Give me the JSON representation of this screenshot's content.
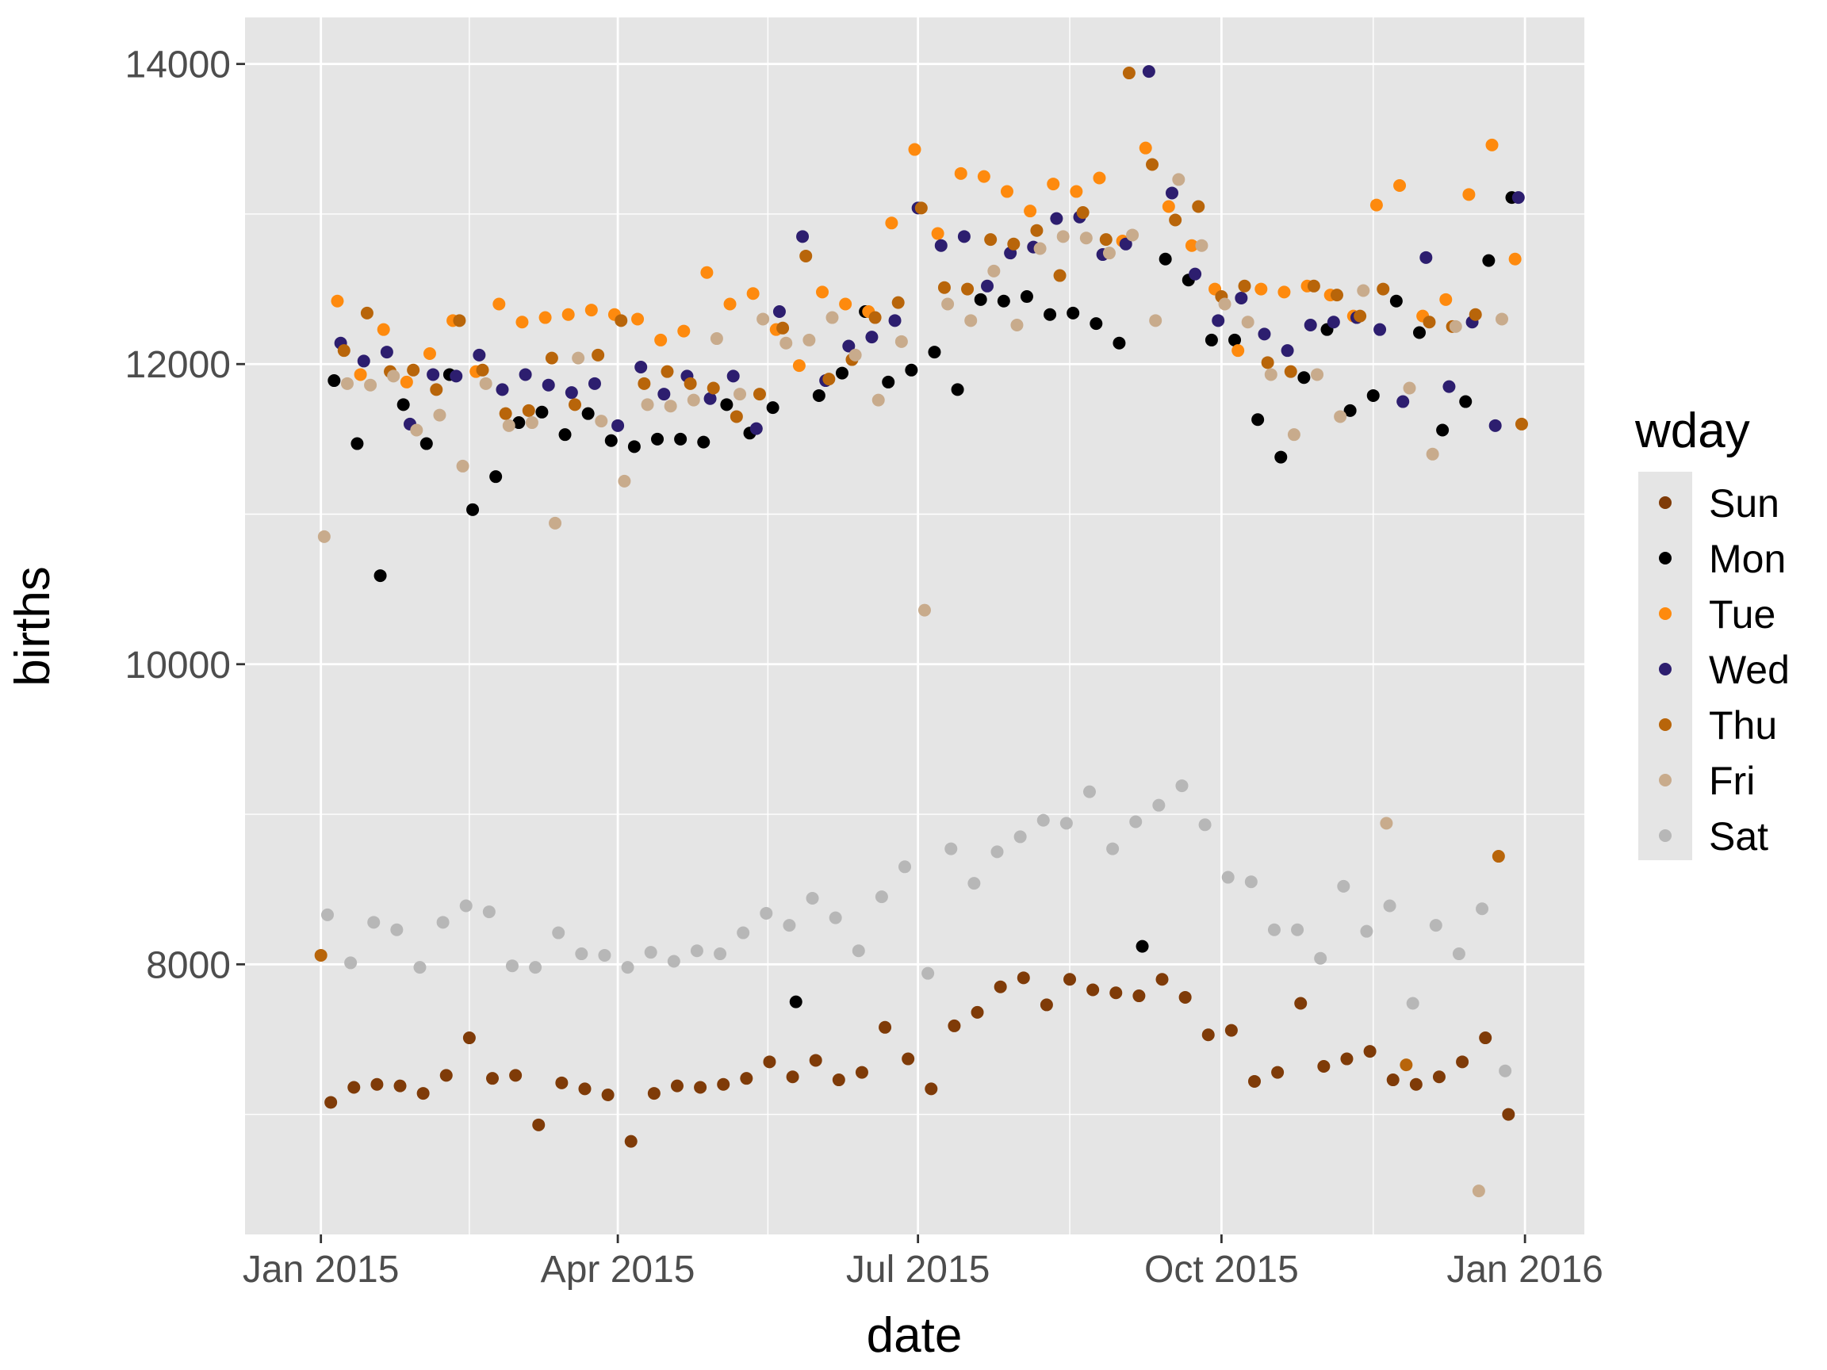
{
  "chart_data": {
    "type": "scatter",
    "xlabel": "date",
    "ylabel": "births",
    "x_ticks": [
      "2015-01-01",
      "2015-04-01",
      "2015-07-01",
      "2015-10-01",
      "2016-01-01"
    ],
    "x_tick_labels": [
      "Jan 2015",
      "Apr 2015",
      "Jul 2015",
      "Oct 2015",
      "Jan 2016"
    ],
    "y_ticks": [
      8000,
      10000,
      12000,
      14000
    ],
    "y_tick_labels": [
      "8000",
      "10000",
      "12000",
      "14000"
    ],
    "xlim": [
      "2014-12-09",
      "2016-01-19"
    ],
    "ylim": [
      6200,
      14310
    ],
    "grid": true,
    "legend": {
      "title": "wday",
      "position": "right",
      "items": [
        {
          "label": "Sun",
          "color": "#7f3b08"
        },
        {
          "label": "Mon",
          "color": "#000000"
        },
        {
          "label": "Tue",
          "color": "#fe8a0e"
        },
        {
          "label": "Wed",
          "color": "#2d1e6f"
        },
        {
          "label": "Thu",
          "color": "#b8650a"
        },
        {
          "label": "Fri",
          "color": "#c8ab8c"
        },
        {
          "label": "Sat",
          "color": "#b7b7b7"
        }
      ]
    },
    "series": [
      {
        "name": "Sun",
        "color": "#7f3b08",
        "x": [
          "2015-01-04",
          "2015-01-11",
          "2015-01-18",
          "2015-01-25",
          "2015-02-01",
          "2015-02-08",
          "2015-02-15",
          "2015-02-22",
          "2015-03-01",
          "2015-03-08",
          "2015-03-15",
          "2015-03-22",
          "2015-03-29",
          "2015-04-05",
          "2015-04-12",
          "2015-04-19",
          "2015-04-26",
          "2015-05-03",
          "2015-05-10",
          "2015-05-17",
          "2015-05-24",
          "2015-05-31",
          "2015-06-07",
          "2015-06-14",
          "2015-06-21",
          "2015-06-28",
          "2015-07-05",
          "2015-07-12",
          "2015-07-19",
          "2015-07-26",
          "2015-08-02",
          "2015-08-09",
          "2015-08-16",
          "2015-08-23",
          "2015-08-30",
          "2015-09-06",
          "2015-09-13",
          "2015-09-20",
          "2015-09-27",
          "2015-10-04",
          "2015-10-11",
          "2015-10-18",
          "2015-10-25",
          "2015-11-01",
          "2015-11-08",
          "2015-11-15",
          "2015-11-22",
          "2015-11-29",
          "2015-12-06",
          "2015-12-13",
          "2015-12-20",
          "2015-12-27"
        ],
        "y": [
          7080,
          7180,
          7200,
          7190,
          7140,
          7260,
          7510,
          7240,
          7260,
          6930,
          7210,
          7170,
          7130,
          6820,
          7140,
          7190,
          7180,
          7200,
          7240,
          7350,
          7250,
          7360,
          7230,
          7280,
          7580,
          7370,
          7170,
          7590,
          7680,
          7850,
          7910,
          7730,
          7900,
          7830,
          7810,
          7790,
          7900,
          7780,
          7530,
          7560,
          7220,
          7280,
          7740,
          7320,
          7370,
          7420,
          7230,
          7200,
          7250,
          7350,
          7510,
          7000
        ]
      },
      {
        "name": "Mon",
        "color": "#000000",
        "x": [
          "2015-01-05",
          "2015-01-12",
          "2015-01-19",
          "2015-01-26",
          "2015-02-02",
          "2015-02-09",
          "2015-02-16",
          "2015-02-23",
          "2015-03-02",
          "2015-03-09",
          "2015-03-16",
          "2015-03-23",
          "2015-03-30",
          "2015-04-06",
          "2015-04-13",
          "2015-04-20",
          "2015-04-27",
          "2015-05-04",
          "2015-05-11",
          "2015-05-18",
          "2015-05-25",
          "2015-06-01",
          "2015-06-08",
          "2015-06-15",
          "2015-06-22",
          "2015-06-29",
          "2015-07-06",
          "2015-07-13",
          "2015-07-20",
          "2015-07-27",
          "2015-08-03",
          "2015-08-10",
          "2015-08-17",
          "2015-08-24",
          "2015-08-31",
          "2015-09-07",
          "2015-09-14",
          "2015-09-21",
          "2015-09-28",
          "2015-10-05",
          "2015-10-12",
          "2015-10-19",
          "2015-10-26",
          "2015-11-02",
          "2015-11-09",
          "2015-11-16",
          "2015-11-23",
          "2015-11-30",
          "2015-12-07",
          "2015-12-14",
          "2015-12-21",
          "2015-12-28"
        ],
        "y": [
          11890,
          11470,
          10590,
          11730,
          11470,
          11930,
          11030,
          11250,
          11610,
          11680,
          11530,
          11670,
          11490,
          11450,
          11500,
          11500,
          11480,
          11730,
          11540,
          11710,
          7750,
          11790,
          11940,
          12350,
          11880,
          11960,
          12080,
          11830,
          12430,
          12420,
          12450,
          12330,
          12340,
          12270,
          12140,
          8120,
          12700,
          12560,
          12160,
          12160,
          11630,
          11380,
          11910,
          12230,
          11690,
          11790,
          12420,
          12210,
          11560,
          11750,
          12690,
          13110
        ]
      },
      {
        "name": "Tue",
        "color": "#fe8a0e",
        "x": [
          "2015-01-06",
          "2015-01-13",
          "2015-01-20",
          "2015-01-27",
          "2015-02-03",
          "2015-02-10",
          "2015-02-17",
          "2015-02-24",
          "2015-03-03",
          "2015-03-10",
          "2015-03-17",
          "2015-03-24",
          "2015-03-31",
          "2015-04-07",
          "2015-04-14",
          "2015-04-21",
          "2015-04-28",
          "2015-05-05",
          "2015-05-12",
          "2015-05-19",
          "2015-05-26",
          "2015-06-02",
          "2015-06-09",
          "2015-06-16",
          "2015-06-23",
          "2015-06-30",
          "2015-07-07",
          "2015-07-14",
          "2015-07-21",
          "2015-07-28",
          "2015-08-04",
          "2015-08-11",
          "2015-08-18",
          "2015-08-25",
          "2015-09-01",
          "2015-09-08",
          "2015-09-15",
          "2015-09-22",
          "2015-09-29",
          "2015-10-06",
          "2015-10-13",
          "2015-10-20",
          "2015-10-27",
          "2015-11-03",
          "2015-11-10",
          "2015-11-17",
          "2015-11-24",
          "2015-12-01",
          "2015-12-08",
          "2015-12-15",
          "2015-12-22",
          "2015-12-29"
        ],
        "y": [
          12420,
          11930,
          12230,
          11880,
          12070,
          12290,
          11950,
          12400,
          12280,
          12310,
          12330,
          12360,
          12330,
          12300,
          12160,
          12220,
          12610,
          12400,
          12470,
          12230,
          11990,
          12480,
          12400,
          12350,
          12940,
          13430,
          12870,
          13270,
          13250,
          13150,
          13020,
          13200,
          13150,
          13240,
          12820,
          13440,
          13050,
          12790,
          12500,
          12090,
          12500,
          12480,
          12520,
          12460,
          12320,
          13060,
          13190,
          12320,
          12430,
          13130,
          13460,
          12700
        ]
      },
      {
        "name": "Wed",
        "color": "#2d1e6f",
        "x": [
          "2015-01-07",
          "2015-01-14",
          "2015-01-21",
          "2015-01-28",
          "2015-02-04",
          "2015-02-11",
          "2015-02-18",
          "2015-02-25",
          "2015-03-04",
          "2015-03-11",
          "2015-03-18",
          "2015-03-25",
          "2015-04-01",
          "2015-04-08",
          "2015-04-15",
          "2015-04-22",
          "2015-04-29",
          "2015-05-06",
          "2015-05-13",
          "2015-05-20",
          "2015-05-27",
          "2015-06-03",
          "2015-06-10",
          "2015-06-17",
          "2015-06-24",
          "2015-07-01",
          "2015-07-08",
          "2015-07-15",
          "2015-07-22",
          "2015-07-29",
          "2015-08-05",
          "2015-08-12",
          "2015-08-19",
          "2015-08-26",
          "2015-09-02",
          "2015-09-09",
          "2015-09-16",
          "2015-09-23",
          "2015-09-30",
          "2015-10-07",
          "2015-10-14",
          "2015-10-21",
          "2015-10-28",
          "2015-11-04",
          "2015-11-11",
          "2015-11-18",
          "2015-11-25",
          "2015-12-02",
          "2015-12-09",
          "2015-12-16",
          "2015-12-23",
          "2015-12-30"
        ],
        "y": [
          12140,
          12020,
          12080,
          11600,
          11930,
          11920,
          12060,
          11830,
          11930,
          11860,
          11810,
          11870,
          11590,
          11980,
          11800,
          11920,
          11770,
          11920,
          11570,
          12350,
          12850,
          11890,
          12120,
          12180,
          12290,
          13040,
          12790,
          12850,
          12520,
          12740,
          12780,
          12970,
          12980,
          12730,
          12800,
          13950,
          13140,
          12600,
          12290,
          12440,
          12200,
          12090,
          12260,
          12280,
          12310,
          12230,
          11750,
          12710,
          11850,
          12280,
          11590,
          13110
        ]
      },
      {
        "name": "Thu",
        "color": "#b8650a",
        "x": [
          "2015-01-01",
          "2015-01-08",
          "2015-01-15",
          "2015-01-22",
          "2015-01-29",
          "2015-02-05",
          "2015-02-12",
          "2015-02-19",
          "2015-02-26",
          "2015-03-05",
          "2015-03-12",
          "2015-03-19",
          "2015-03-26",
          "2015-04-02",
          "2015-04-09",
          "2015-04-16",
          "2015-04-23",
          "2015-04-30",
          "2015-05-07",
          "2015-05-14",
          "2015-05-21",
          "2015-05-28",
          "2015-06-04",
          "2015-06-11",
          "2015-06-18",
          "2015-06-25",
          "2015-07-02",
          "2015-07-09",
          "2015-07-16",
          "2015-07-23",
          "2015-07-30",
          "2015-08-06",
          "2015-08-13",
          "2015-08-20",
          "2015-08-27",
          "2015-09-03",
          "2015-09-10",
          "2015-09-17",
          "2015-09-24",
          "2015-10-01",
          "2015-10-08",
          "2015-10-15",
          "2015-10-22",
          "2015-10-29",
          "2015-11-05",
          "2015-11-12",
          "2015-11-19",
          "2015-11-26",
          "2015-12-03",
          "2015-12-10",
          "2015-12-17",
          "2015-12-24",
          "2015-12-31"
        ],
        "y": [
          8060,
          12090,
          12340,
          11950,
          11960,
          11830,
          12290,
          11960,
          11670,
          11690,
          12040,
          11730,
          12060,
          12290,
          11870,
          11950,
          11870,
          11840,
          11650,
          11800,
          12240,
          12720,
          11900,
          12030,
          12310,
          12410,
          13040,
          12510,
          12500,
          12830,
          12800,
          12890,
          12590,
          13010,
          12830,
          13940,
          13330,
          12960,
          13050,
          12450,
          12520,
          12010,
          11950,
          12520,
          12460,
          12320,
          12500,
          7330,
          12280,
          12250,
          12330,
          8720,
          11600
        ]
      },
      {
        "name": "Fri",
        "color": "#c8ab8c",
        "x": [
          "2015-01-02",
          "2015-01-09",
          "2015-01-16",
          "2015-01-23",
          "2015-01-30",
          "2015-02-06",
          "2015-02-13",
          "2015-02-20",
          "2015-02-27",
          "2015-03-06",
          "2015-03-13",
          "2015-03-20",
          "2015-03-27",
          "2015-04-03",
          "2015-04-10",
          "2015-04-17",
          "2015-04-24",
          "2015-05-01",
          "2015-05-08",
          "2015-05-15",
          "2015-05-22",
          "2015-05-29",
          "2015-06-05",
          "2015-06-12",
          "2015-06-19",
          "2015-06-26",
          "2015-07-03",
          "2015-07-10",
          "2015-07-17",
          "2015-07-24",
          "2015-07-31",
          "2015-08-07",
          "2015-08-14",
          "2015-08-21",
          "2015-08-28",
          "2015-09-04",
          "2015-09-11",
          "2015-09-18",
          "2015-09-25",
          "2015-10-02",
          "2015-10-09",
          "2015-10-16",
          "2015-10-23",
          "2015-10-30",
          "2015-11-06",
          "2015-11-13",
          "2015-11-20",
          "2015-11-27",
          "2015-12-04",
          "2015-12-11",
          "2015-12-18",
          "2015-12-25"
        ],
        "y": [
          10850,
          11870,
          11860,
          11920,
          11560,
          11660,
          11320,
          11870,
          11590,
          11610,
          10940,
          12040,
          11620,
          11220,
          11730,
          11720,
          11760,
          12170,
          11800,
          12300,
          12140,
          12160,
          12310,
          12060,
          11760,
          12150,
          10360,
          12400,
          12290,
          12620,
          12260,
          12770,
          12850,
          12840,
          12740,
          12860,
          12290,
          13230,
          12790,
          12400,
          12280,
          11930,
          11530,
          11930,
          11650,
          12490,
          8940,
          11840,
          11400,
          12250,
          6490,
          12300
        ]
      },
      {
        "name": "Sat",
        "color": "#b7b7b7",
        "x": [
          "2015-01-03",
          "2015-01-10",
          "2015-01-17",
          "2015-01-24",
          "2015-01-31",
          "2015-02-07",
          "2015-02-14",
          "2015-02-21",
          "2015-02-28",
          "2015-03-07",
          "2015-03-14",
          "2015-03-21",
          "2015-03-28",
          "2015-04-04",
          "2015-04-11",
          "2015-04-18",
          "2015-04-25",
          "2015-05-02",
          "2015-05-09",
          "2015-05-16",
          "2015-05-23",
          "2015-05-30",
          "2015-06-06",
          "2015-06-13",
          "2015-06-20",
          "2015-06-27",
          "2015-07-04",
          "2015-07-11",
          "2015-07-18",
          "2015-07-25",
          "2015-08-01",
          "2015-08-08",
          "2015-08-15",
          "2015-08-22",
          "2015-08-29",
          "2015-09-05",
          "2015-09-12",
          "2015-09-19",
          "2015-09-26",
          "2015-10-03",
          "2015-10-10",
          "2015-10-17",
          "2015-10-24",
          "2015-10-31",
          "2015-11-07",
          "2015-11-14",
          "2015-11-21",
          "2015-11-28",
          "2015-12-05",
          "2015-12-12",
          "2015-12-19",
          "2015-12-26"
        ],
        "y": [
          8330,
          8010,
          8280,
          8230,
          7980,
          8280,
          8390,
          8350,
          7990,
          7980,
          8210,
          8070,
          8060,
          7980,
          8080,
          8020,
          8090,
          8070,
          8210,
          8340,
          8260,
          8440,
          8310,
          8090,
          8450,
          8650,
          7940,
          8770,
          8540,
          8750,
          8850,
          8960,
          8940,
          9150,
          8770,
          8950,
          9060,
          9190,
          8930,
          8580,
          8550,
          8230,
          8230,
          8040,
          8520,
          8220,
          8390,
          7740,
          8260,
          8070,
          8370,
          7290
        ]
      }
    ]
  }
}
